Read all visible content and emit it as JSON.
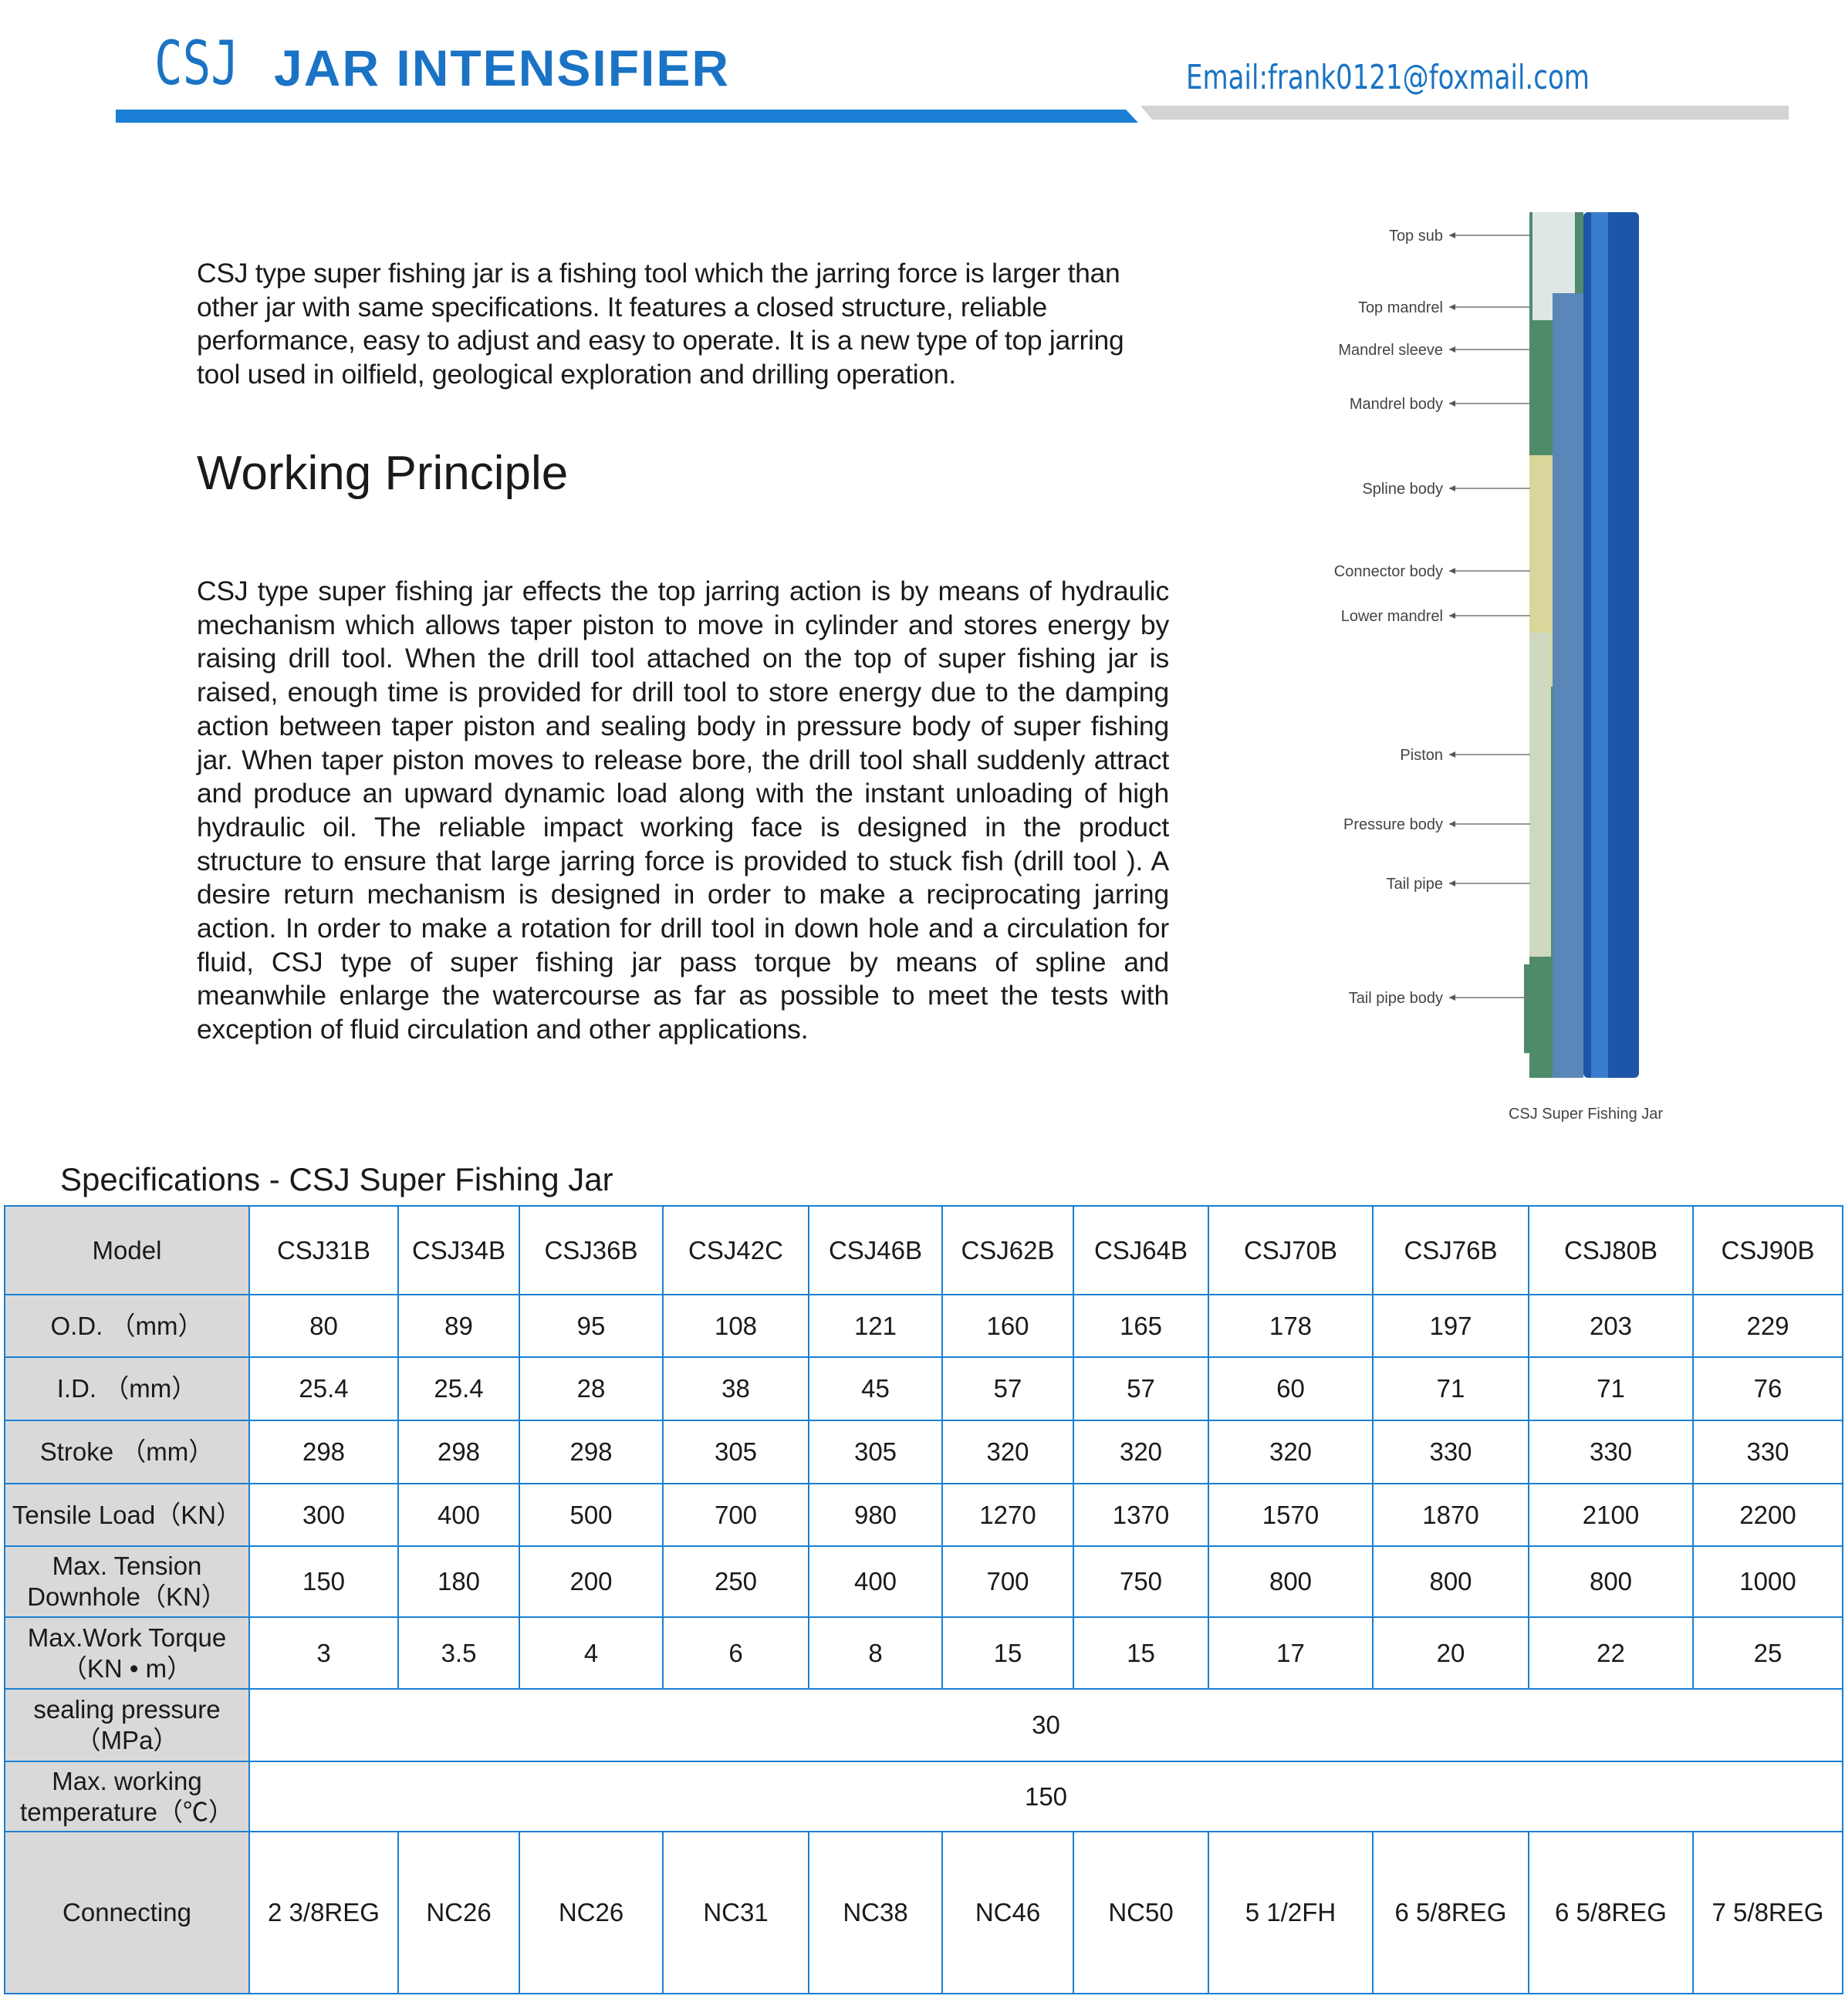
{
  "header": {
    "title_prefix": "CSJ",
    "title": "JAR INTENSIFIER",
    "email": "Email:frank0121@foxmail.com"
  },
  "intro": "CSJ type super fishing jar is a fishing tool which the jarring force is larger than other jar with same specifications. It features a closed structure, reliable performance, easy to adjust and easy to operate. It is a new type of top jarring tool used in oilfield, geological exploration and drilling operation.",
  "principle": {
    "heading": "Working Principle",
    "text": "CSJ type super fishing jar effects the top jarring action is by means of hydraulic mechanism which allows taper piston to move in cylinder and stores energy by raising drill tool. When the drill tool attached on the top of super fishing jar is raised, enough time is provided for drill tool to store energy due to the damping action between taper piston and sealing body in pressure body of super fishing jar. When taper piston moves to release bore, the drill tool shall suddenly attract and produce an upward dynamic load along with the instant unloading of high hydraulic oil. The reliable impact working face is designed in the product structure to ensure that large jarring force is provided to stuck fish (drill tool ). A desire return mechanism is designed in order to make a reciprocating jarring action. In order to make a rotation for drill tool in down hole and a circulation for fluid, CSJ type of super fishing jar pass torque by means of spline and meanwhile enlarge the watercourse as far as possible to meet the tests with exception of fluid circulation and other applications."
  },
  "diagram": {
    "labels": [
      "Top sub",
      "Top mandrel",
      "Mandrel sleeve",
      "Mandrel body",
      "Spline body",
      "Connector body",
      "Lower mandrel",
      "Piston",
      "Pressure body",
      "Tail pipe",
      "Tail pipe body"
    ],
    "caption": "CSJ Super Fishing Jar"
  },
  "table": {
    "title": "Specifications - CSJ Super Fishing Jar",
    "header": [
      "Model",
      "CSJ31B",
      "CSJ34B",
      "CSJ36B",
      "CSJ42C",
      "CSJ46B",
      "CSJ62B",
      "CSJ64B",
      "CSJ70B",
      "CSJ76B",
      "CSJ80B",
      "CSJ90B"
    ],
    "rows": [
      {
        "label": "O.D. （mm）",
        "values": [
          "80",
          "89",
          "95",
          "108",
          "121",
          "160",
          "165",
          "178",
          "197",
          "203",
          "229"
        ]
      },
      {
        "label": "I.D. （mm）",
        "values": [
          "25.4",
          "25.4",
          "28",
          "38",
          "45",
          "57",
          "57",
          "60",
          "71",
          "71",
          "76"
        ]
      },
      {
        "label": "Stroke （mm）",
        "values": [
          "298",
          "298",
          "298",
          "305",
          "305",
          "320",
          "320",
          "320",
          "330",
          "330",
          "330"
        ]
      },
      {
        "label": "Tensile Load（KN）",
        "values": [
          "300",
          "400",
          "500",
          "700",
          "980",
          "1270",
          "1370",
          "1570",
          "1870",
          "2100",
          "2200"
        ]
      },
      {
        "label": "Max. Tension Downhole（KN）",
        "values": [
          "150",
          "180",
          "200",
          "250",
          "400",
          "700",
          "750",
          "800",
          "800",
          "800",
          "1000"
        ]
      },
      {
        "label": "Max.Work Torque（KN • m）",
        "values": [
          "3",
          "3.5",
          "4",
          "6",
          "8",
          "15",
          "15",
          "17",
          "20",
          "22",
          "25"
        ]
      },
      {
        "label": "sealing pressure（MPa）",
        "value": "30"
      },
      {
        "label": "Max. working temperature（℃）",
        "value": "150"
      },
      {
        "label": "Connecting",
        "values": [
          "2 3/8REG",
          "NC26",
          "NC26",
          "NC31",
          "NC38",
          "NC46",
          "NC50",
          "5 1/2FH",
          "6 5/8REG",
          "6 5/8REG",
          "7 5/8REG"
        ]
      }
    ]
  }
}
